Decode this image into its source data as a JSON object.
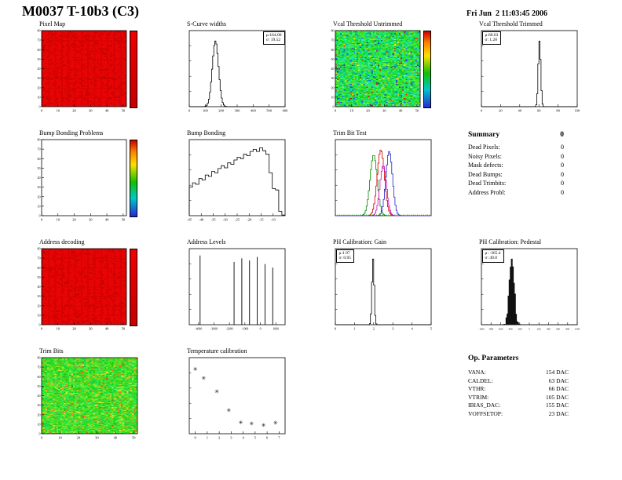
{
  "header": {
    "title": "M0037 T-10b3 (C3)",
    "timestamp": "Fri Jun  2 11:03:45 2006"
  },
  "summary": {
    "title": "Summary",
    "total": "0",
    "rows": [
      {
        "label": "Dead Pixels:",
        "value": "0"
      },
      {
        "label": "Noisy Pixels:",
        "value": "0"
      },
      {
        "label": "Mask defects:",
        "value": "0"
      },
      {
        "label": "Dead Bumps:",
        "value": "0"
      },
      {
        "label": "Dead Trimbits:",
        "value": "0"
      },
      {
        "label": "Address Probl:",
        "value": "0"
      }
    ]
  },
  "op_parameters": {
    "title": "Op. Parameters",
    "rows": [
      {
        "label": "VANA:",
        "value": "154 DAC"
      },
      {
        "label": "CALDEL:",
        "value": "63 DAC"
      },
      {
        "label": "VTHR:",
        "value": "66 DAC"
      },
      {
        "label": "VTRIM:",
        "value": "105 DAC"
      },
      {
        "label": "IBIAS_DAC:",
        "value": "155 DAC"
      },
      {
        "label": "VOFFSETOP:",
        "value": "23 DAC"
      }
    ]
  },
  "chart_data": [
    {
      "id": "pixel-map",
      "type": "heatmap",
      "title": "Pixel Map",
      "style": "red",
      "colorbar": "red",
      "xlim": [
        0,
        52
      ],
      "ylim": [
        0,
        80
      ],
      "x_ticks": [
        0,
        10,
        20,
        30,
        40,
        50
      ],
      "y_ticks": [
        0,
        10,
        20,
        30,
        40,
        50,
        60,
        70,
        80
      ],
      "seed": 7
    },
    {
      "id": "s-curve-widths",
      "type": "histogram",
      "title": "S-Curve widths",
      "distribution": "gaussian",
      "mu": 164,
      "sigma": 19.52,
      "xlim": [
        0,
        600
      ],
      "x_ticks": [
        0,
        100,
        200,
        300,
        400,
        500,
        600
      ],
      "stats_lines": [
        "μ:164.00",
        "σ: 19.52"
      ],
      "stats_pos": "right"
    },
    {
      "id": "vcal-threshold-untrimmed",
      "type": "heatmap",
      "title": "Vcal Threshold Untrimmed",
      "style": "noise",
      "colorbar": "rainbow",
      "xlim": [
        0,
        52
      ],
      "ylim": [
        0,
        80
      ],
      "x_ticks": [
        0,
        10,
        20,
        30,
        40,
        50
      ],
      "y_ticks": [
        0,
        10,
        20,
        30,
        40,
        50,
        60,
        70,
        80
      ],
      "seed": 13
    },
    {
      "id": "vcal-threshold-trimmed",
      "type": "histogram",
      "title": "Vcal Threshold Trimmed",
      "distribution": "gaussian",
      "mu": 60.63,
      "sigma": 1.28,
      "xlim": [
        0,
        100
      ],
      "x_ticks": [
        0,
        20,
        40,
        60,
        80,
        100
      ],
      "stats_lines": [
        "μ:60.63",
        "σ: 1.28"
      ],
      "stats_pos": "left"
    },
    {
      "id": "bump-bonding-problems",
      "type": "heatmap",
      "title": "Bump Bonding Problems",
      "style": "empty",
      "colorbar": "rainbow",
      "xlim": [
        0,
        52
      ],
      "ylim": [
        0,
        80
      ],
      "x_ticks": [
        0,
        10,
        20,
        30,
        40,
        50
      ],
      "y_ticks": [
        0,
        10,
        20,
        30,
        40,
        50,
        60,
        70,
        80
      ],
      "seed": 3
    },
    {
      "id": "bump-bonding",
      "type": "histogram",
      "title": "Bump Bonding",
      "xlim": [
        -45,
        -5
      ],
      "x_ticks": [
        -45,
        -40,
        -35,
        -30,
        -25,
        -20,
        -15,
        -10
      ],
      "values": [
        0.4,
        0.46,
        0.44,
        0.52,
        0.5,
        0.57,
        0.55,
        0.62,
        0.6,
        0.66,
        0.7,
        0.67,
        0.74,
        0.72,
        0.78,
        0.82,
        0.8,
        0.86,
        0.84,
        0.9,
        0.93,
        0.9,
        0.95,
        0.91,
        0.86,
        0.6,
        0.38,
        0.36,
        0.06,
        0.01
      ]
    },
    {
      "id": "trim-bit-test",
      "type": "multi-histogram",
      "title": "Trim Bit Test",
      "xlim": [
        -16,
        0
      ],
      "y_scale": "log",
      "baseline_color": "#00aa00",
      "series": [
        {
          "name": "trim-bit-1",
          "color": "#008800",
          "mu": -9.6,
          "sigma": 0.6,
          "height": 0.85
        },
        {
          "name": "trim-bit-2",
          "color": "#cc0000",
          "mu": -8.4,
          "sigma": 0.6,
          "height": 0.92
        },
        {
          "name": "trim-bit-3",
          "color": "#cc00cc",
          "mu": -8.0,
          "sigma": 0.55,
          "height": 0.7
        },
        {
          "name": "trim-bit-4",
          "color": "#2222cc",
          "mu": -7.0,
          "sigma": 0.55,
          "height": 0.9
        }
      ]
    },
    {
      "id": "address-decoding",
      "type": "heatmap",
      "title": "Address decoding",
      "style": "red",
      "colorbar": "red",
      "xlim": [
        0,
        52
      ],
      "ylim": [
        0,
        80
      ],
      "x_ticks": [
        0,
        10,
        20,
        30,
        40,
        50
      ],
      "y_ticks": [
        0,
        10,
        20,
        30,
        40,
        50,
        60,
        70,
        80
      ],
      "seed": 21
    },
    {
      "id": "address-levels",
      "type": "spikes",
      "title": "Address Levels",
      "xlim": [
        -4600,
        1600
      ],
      "x_ticks": [
        -4000,
        -3000,
        -2000,
        -1000,
        0,
        1000
      ],
      "tick_font": 3.8,
      "spikes": [
        [
          -3900,
          0.97
        ],
        [
          -1700,
          0.88
        ],
        [
          -1200,
          0.93
        ],
        [
          -700,
          0.9
        ],
        [
          -200,
          0.95
        ],
        [
          300,
          0.85
        ],
        [
          800,
          0.8
        ]
      ]
    },
    {
      "id": "ph-calibration-gain",
      "type": "histogram",
      "title": "PH Calibration: Gain",
      "distribution": "gaussian",
      "mu": 1.97,
      "sigma": 0.05,
      "xlim": [
        0,
        5
      ],
      "x_ticks": [
        0,
        1,
        2,
        3,
        4,
        5
      ],
      "stats_lines": [
        "μ:1.97",
        "σ: 0.05"
      ],
      "stats_pos": "left"
    },
    {
      "id": "ph-calibration-pedestal",
      "type": "histogram",
      "title": "PH Calibration: Pedestal",
      "distribution": "gaussian",
      "mu": -365.4,
      "sigma": 49.8,
      "xlim": [
        -1000,
        1000
      ],
      "x_ticks": [
        -1000,
        -800,
        -600,
        -400,
        -200,
        0,
        200,
        400,
        600,
        800,
        1000
      ],
      "tick_font": 3.2,
      "fill": "#111111",
      "stats_lines": [
        "μ: -365.4",
        "σ: 49.8"
      ],
      "stats_pos": "left"
    },
    {
      "id": "trim-bits",
      "type": "heatmap",
      "title": "Trim Bits",
      "style": "green",
      "xlim": [
        0,
        52
      ],
      "ylim": [
        0,
        80
      ],
      "x_ticks": [
        0,
        10,
        20,
        30,
        40,
        50
      ],
      "y_ticks": [
        0,
        10,
        20,
        30,
        40,
        50,
        60,
        70,
        80
      ],
      "seed": 29
    },
    {
      "id": "temperature-calibration",
      "type": "scatter",
      "title": "Temperature calibration",
      "marker": "✳",
      "xlim": [
        -0.5,
        7.5
      ],
      "ylim": [
        0,
        1
      ],
      "x_ticks": [
        0,
        1,
        2,
        3,
        4,
        5,
        6,
        7
      ],
      "points": [
        [
          0,
          0.92
        ],
        [
          0.7,
          0.79
        ],
        [
          1.8,
          0.6
        ],
        [
          2.8,
          0.33
        ],
        [
          3.8,
          0.16
        ],
        [
          4.7,
          0.14
        ],
        [
          5.7,
          0.12
        ],
        [
          6.7,
          0.15
        ]
      ]
    }
  ]
}
